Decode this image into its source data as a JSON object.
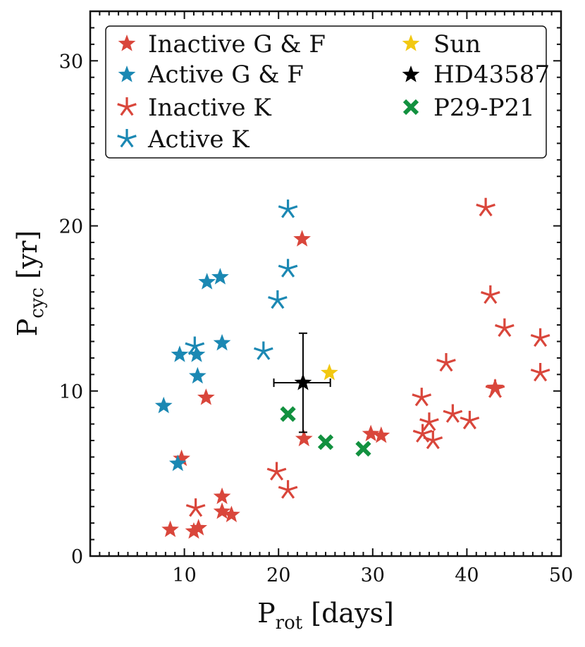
{
  "chart_data": {
    "type": "scatter",
    "xlabel": {
      "main": "P",
      "sub": "rot",
      "suffix": " [days]"
    },
    "ylabel": {
      "main": "P",
      "sub": "cyc",
      "suffix": " [yr]"
    },
    "xlim": [
      0,
      50
    ],
    "ylim": [
      0,
      33
    ],
    "xticks": [
      10,
      20,
      30,
      40,
      50
    ],
    "yticks": [
      0,
      10,
      20,
      30
    ],
    "grid": false,
    "legend_position": "top-left",
    "colors": {
      "inactive": "#d9463b",
      "active": "#1b88b3",
      "sun": "#f2c811",
      "hd": "#000000",
      "p29": "#12913f",
      "axis": "#111111"
    },
    "legend": {
      "inactive_gf": "Inactive G & F",
      "active_gf": "Active G & F",
      "inactive_k": "Inactive K",
      "active_k": "Active K",
      "sun": "Sun",
      "hd": "HD43587",
      "p29": "P29-P21"
    },
    "series": [
      {
        "name": "Inactive G & F",
        "marker": "star5",
        "color": "#d9463b",
        "points": [
          [
            8.5,
            1.6
          ],
          [
            11.0,
            1.5
          ],
          [
            11.5,
            1.7
          ],
          [
            9.7,
            5.9
          ],
          [
            12.3,
            9.6
          ],
          [
            14.0,
            3.6
          ],
          [
            14.0,
            2.7
          ],
          [
            15.0,
            2.5
          ],
          [
            22.5,
            19.2
          ],
          [
            22.7,
            7.1
          ],
          [
            29.8,
            7.4
          ],
          [
            30.9,
            7.3
          ],
          [
            43.0,
            10.2
          ]
        ]
      },
      {
        "name": "Active G & F",
        "marker": "star5",
        "color": "#1b88b3",
        "points": [
          [
            7.8,
            9.1
          ],
          [
            9.5,
            12.2
          ],
          [
            11.3,
            12.2
          ],
          [
            11.4,
            10.9
          ],
          [
            9.3,
            5.6
          ],
          [
            12.4,
            16.6
          ],
          [
            13.8,
            16.9
          ],
          [
            14.0,
            12.9
          ]
        ]
      },
      {
        "name": "Inactive K",
        "marker": "asterisk",
        "color": "#d9463b",
        "points": [
          [
            11.2,
            2.9
          ],
          [
            19.8,
            5.1
          ],
          [
            21.0,
            4.0
          ],
          [
            35.2,
            9.6
          ],
          [
            35.3,
            7.4
          ],
          [
            36.0,
            8.1
          ],
          [
            36.4,
            7.0
          ],
          [
            37.8,
            11.7
          ],
          [
            38.5,
            8.6
          ],
          [
            40.3,
            8.2
          ],
          [
            42.0,
            21.1
          ],
          [
            42.5,
            15.8
          ],
          [
            43.0,
            10.1
          ],
          [
            44.0,
            13.8
          ],
          [
            47.8,
            13.2
          ],
          [
            47.8,
            11.1
          ]
        ]
      },
      {
        "name": "Active K",
        "marker": "asterisk",
        "color": "#1b88b3",
        "points": [
          [
            11.1,
            12.7
          ],
          [
            18.4,
            12.4
          ],
          [
            19.9,
            15.5
          ],
          [
            21.0,
            17.4
          ],
          [
            21.0,
            21.0
          ]
        ]
      },
      {
        "name": "Sun",
        "marker": "star5",
        "color": "#f2c811",
        "points": [
          [
            25.4,
            11.1
          ]
        ]
      },
      {
        "name": "HD43587",
        "marker": "star5",
        "color": "#000000",
        "points": [
          [
            22.6,
            10.5
          ]
        ],
        "error": {
          "x": [
            19.5,
            25.5
          ],
          "y": [
            7.5,
            13.5
          ]
        }
      },
      {
        "name": "P29-P21",
        "marker": "x",
        "color": "#12913f",
        "points": [
          [
            21.0,
            8.6
          ],
          [
            25.0,
            6.9
          ],
          [
            29.0,
            6.5
          ]
        ]
      }
    ]
  }
}
